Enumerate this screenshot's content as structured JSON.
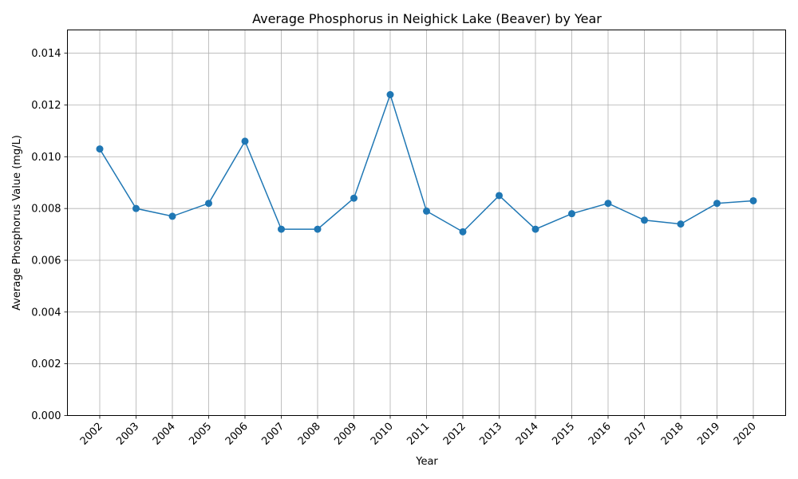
{
  "chart_data": {
    "type": "line",
    "title": "Average Phosphorus in Neighick Lake (Beaver) by Year",
    "xlabel": "Year",
    "ylabel": "Average Phosphorus Value (mg/L)",
    "ylim": [
      0,
      0.0149
    ],
    "yticks": [
      "0.000",
      "0.002",
      "0.004",
      "0.006",
      "0.008",
      "0.010",
      "0.012",
      "0.014"
    ],
    "grid": true,
    "color": "#1f77b4",
    "categories": [
      "2002",
      "2003",
      "2004",
      "2005",
      "2006",
      "2007",
      "2008",
      "2009",
      "2010",
      "2011",
      "2012",
      "2013",
      "2014",
      "2015",
      "2016",
      "2017",
      "2018",
      "2019",
      "2020"
    ],
    "values": [
      0.0103,
      0.008,
      0.0077,
      0.0082,
      0.0106,
      0.0072,
      0.0072,
      0.0084,
      0.0124,
      0.0079,
      0.0071,
      0.0085,
      0.0072,
      0.0078,
      0.0082,
      0.00755,
      0.0074,
      0.0082,
      0.0083
    ]
  }
}
